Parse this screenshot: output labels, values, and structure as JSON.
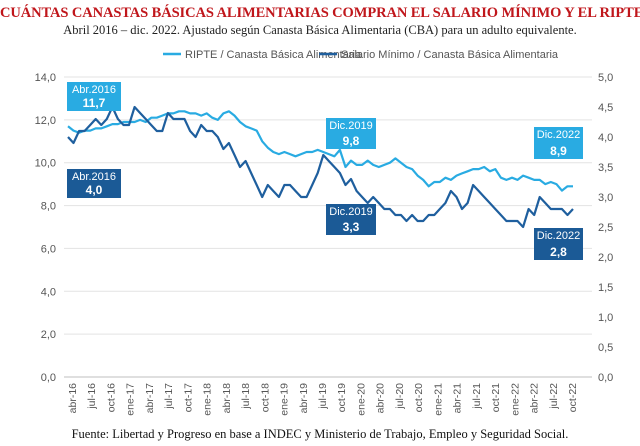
{
  "header": {
    "title": "CUÁNTAS CANASTAS BÁSICAS ALIMENTARIAS COMPRAN EL SALARIO MÍNIMO Y EL RIPTE",
    "subtitle": "Abril 2016 – dic. 2022. Ajustado según Canasta Básica Alimentaria (CBA) para un adulto equivalente."
  },
  "source": "Fuente: Libertad y Progreso en base a INDEC y Ministerio de Trabajo, Empleo y Seguridad Social.",
  "colors": {
    "ripte": "#29abe2",
    "smvm": "#1f5f9e",
    "ripte_label": "#29abe2",
    "smvm_label": "#1b5a96"
  },
  "chart_data": {
    "type": "line",
    "x_tick_labels": [
      "abr-16",
      "jul-16",
      "oct-16",
      "ene-17",
      "abr-17",
      "jul-17",
      "oct-17",
      "ene-18",
      "abr-18",
      "jul-18",
      "oct-18",
      "ene-19",
      "abr-19",
      "jul-19",
      "oct-19",
      "ene-20",
      "abr-20",
      "jul-20",
      "oct-20",
      "ene-21",
      "abr-21",
      "jul-21",
      "oct-21",
      "ene-22",
      "abr-22",
      "jul-22",
      "oct-22"
    ],
    "y_left": {
      "min": 0,
      "max": 14,
      "ticks": [
        "0,0",
        "2,0",
        "4,0",
        "6,0",
        "8,0",
        "10,0",
        "12,0",
        "14,0"
      ]
    },
    "y_right": {
      "min": 0,
      "max": 5,
      "ticks": [
        "0,0",
        "0,5",
        "1,0",
        "1,5",
        "2,0",
        "2,5",
        "3,0",
        "3,5",
        "4,0",
        "4,5",
        "5,0"
      ]
    },
    "grid": "horizontal",
    "legend_position": "top",
    "series": [
      {
        "name": "RIPTE / Canasta Básica Alimentaria",
        "axis": "left",
        "values": [
          11.7,
          11.5,
          11.4,
          11.5,
          11.5,
          11.6,
          11.6,
          11.7,
          11.8,
          11.8,
          11.9,
          11.9,
          11.9,
          12.0,
          11.9,
          12.1,
          12.1,
          12.2,
          12.3,
          12.3,
          12.4,
          12.4,
          12.3,
          12.3,
          12.2,
          12.3,
          12.1,
          12.0,
          12.3,
          12.4,
          12.2,
          11.9,
          11.7,
          11.6,
          11.5,
          11.0,
          10.7,
          10.5,
          10.4,
          10.5,
          10.4,
          10.3,
          10.4,
          10.5,
          10.5,
          10.6,
          10.5,
          10.4,
          10.3,
          10.6,
          9.8,
          10.1,
          9.9,
          9.9,
          10.1,
          9.9,
          9.8,
          9.9,
          10.0,
          10.2,
          10.0,
          9.8,
          9.7,
          9.4,
          9.2,
          8.9,
          9.1,
          9.1,
          9.3,
          9.2,
          9.4,
          9.5,
          9.6,
          9.7,
          9.7,
          9.8,
          9.6,
          9.7,
          9.3,
          9.2,
          9.3,
          9.2,
          9.4,
          9.3,
          9.2,
          9.2,
          9.0,
          9.1,
          9.0,
          8.7,
          8.9,
          8.9
        ]
      },
      {
        "name": "Salario Mínimo / Canasta Básica Alimentaria",
        "axis": "right",
        "values": [
          4.0,
          3.9,
          4.1,
          4.1,
          4.2,
          4.3,
          4.2,
          4.3,
          4.5,
          4.3,
          4.2,
          4.2,
          4.5,
          4.4,
          4.3,
          4.2,
          4.1,
          4.1,
          4.4,
          4.3,
          4.3,
          4.3,
          4.1,
          4.0,
          4.2,
          4.1,
          4.1,
          4.0,
          3.8,
          3.9,
          3.7,
          3.5,
          3.6,
          3.4,
          3.2,
          3.0,
          3.2,
          3.1,
          3.0,
          3.2,
          3.2,
          3.1,
          3.0,
          3.0,
          3.2,
          3.4,
          3.7,
          3.6,
          3.5,
          3.4,
          3.2,
          3.3,
          3.1,
          3.0,
          2.9,
          3.0,
          2.9,
          2.8,
          2.8,
          2.7,
          2.7,
          2.6,
          2.7,
          2.6,
          2.6,
          2.7,
          2.7,
          2.8,
          2.9,
          3.1,
          3.0,
          2.8,
          2.9,
          3.2,
          3.1,
          3.0,
          2.9,
          2.8,
          2.7,
          2.6,
          2.6,
          2.6,
          2.5,
          2.8,
          2.7,
          3.0,
          2.9,
          2.8,
          2.8,
          2.8,
          2.7,
          2.8
        ]
      }
    ],
    "annotations": [
      {
        "label": "Abr.2016",
        "value": "11,7",
        "series": "RIPTE / Canasta Básica Alimentaria"
      },
      {
        "label": "Abr.2016",
        "value": "4,0",
        "series": "Salario Mínimo / Canasta Básica Alimentaria"
      },
      {
        "label": "Dic.2019",
        "value": "9,8",
        "series": "RIPTE / Canasta Básica Alimentaria"
      },
      {
        "label": "Dic.2019",
        "value": "3,3",
        "series": "Salario Mínimo / Canasta Básica Alimentaria"
      },
      {
        "label": "Dic.2022",
        "value": "8,9",
        "series": "RIPTE / Canasta Básica Alimentaria"
      },
      {
        "label": "Dic.2022",
        "value": "2,8",
        "series": "Salario Mínimo / Canasta Básica Alimentaria"
      }
    ]
  }
}
